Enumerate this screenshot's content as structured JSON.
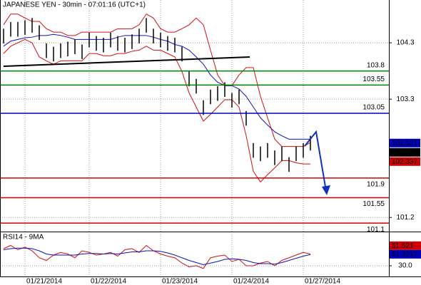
{
  "chart_data": [
    {
      "type": "ohlc",
      "title": "JAPANESE YEN - 30min - 07:01:16 (UTC+1)",
      "categories": [
        null,
        null,
        null,
        "01/21/2014",
        null,
        null,
        null,
        null,
        null,
        null,
        null,
        null,
        "01/22/2014",
        null,
        null,
        null,
        null,
        null,
        null,
        null,
        null,
        null,
        "01/23/2014",
        null,
        null,
        null,
        null,
        null,
        null,
        null,
        null,
        null,
        "01/24/2014",
        null,
        null,
        null,
        null,
        null,
        null,
        null,
        null,
        null,
        "01/27/2014",
        null
      ],
      "high": [
        104.55,
        104.67,
        104.67,
        104.7,
        104.74,
        104.61,
        104.29,
        104.23,
        104.29,
        104.32,
        104.36,
        104.27,
        104.48,
        104.42,
        104.39,
        104.48,
        104.42,
        104.39,
        104.45,
        104.55,
        104.74,
        104.55,
        104.48,
        104.42,
        104.39,
        104.23,
        103.79,
        103.66,
        103.28,
        103.47,
        103.53,
        103.6,
        103.41,
        103.47,
        103.09,
        102.52,
        102.46,
        102.52,
        102.39,
        102.46,
        102.27,
        102.46,
        102.52,
        102.65
      ],
      "low": [
        104.29,
        104.41,
        104.41,
        104.44,
        104.48,
        104.35,
        104.03,
        103.97,
        104.03,
        104.06,
        104.1,
        104.01,
        104.22,
        104.16,
        104.13,
        104.22,
        104.16,
        104.13,
        104.19,
        104.29,
        104.48,
        104.29,
        104.22,
        104.16,
        104.13,
        103.97,
        103.53,
        103.4,
        103.02,
        103.21,
        103.27,
        103.34,
        103.15,
        103.21,
        102.83,
        102.26,
        102.2,
        102.26,
        102.13,
        102.2,
        102.01,
        102.2,
        102.26,
        102.39
      ],
      "bar_color": "#000000",
      "series": [
        {
          "color": "#d01010",
          "values": [
            104.62,
            104.81,
            104.81,
            104.74,
            104.68,
            104.68,
            104.55,
            104.49,
            104.49,
            104.43,
            104.43,
            104.49,
            104.49,
            104.49,
            104.49,
            104.49,
            104.55,
            104.55,
            104.55,
            104.62,
            104.81,
            104.74,
            104.55,
            104.49,
            104.49,
            104.55,
            104.62,
            104.74,
            104.62,
            104.17,
            103.73,
            103.54,
            103.54,
            103.73,
            103.86,
            103.86,
            103.35,
            102.97,
            102.59,
            102.46,
            102.46,
            102.46,
            102.46,
            102.53
          ]
        },
        {
          "color": "#d01010",
          "values": [
            104.11,
            104.24,
            104.3,
            104.36,
            104.3,
            104.05,
            103.98,
            103.92,
            103.98,
            103.98,
            103.98,
            103.98,
            104.11,
            104.11,
            104.07,
            104.07,
            104.11,
            104.11,
            104.15,
            104.17,
            104.24,
            104.17,
            104.17,
            104.11,
            104.05,
            103.79,
            103.41,
            103.16,
            102.91,
            103.03,
            103.16,
            103.29,
            103.29,
            103.16,
            102.65,
            102.02,
            101.83,
            101.96,
            102.08,
            102.21,
            102.21,
            102.17,
            102.15,
            102.15
          ]
        },
        {
          "color": "#1010c0",
          "values": [
            104.24,
            104.33,
            104.36,
            104.39,
            104.4,
            104.43,
            104.43,
            104.45,
            104.43,
            104.4,
            104.36,
            104.36,
            104.36,
            104.36,
            104.36,
            104.36,
            104.4,
            104.43,
            104.43,
            104.43,
            104.43,
            104.4,
            104.36,
            104.33,
            104.27,
            104.24,
            104.17,
            104.05,
            103.92,
            103.73,
            103.6,
            103.54,
            103.54,
            103.48,
            103.35,
            103.16,
            102.97,
            102.84,
            102.72,
            102.65,
            102.59,
            102.59,
            102.59,
            102.59
          ]
        }
      ],
      "levels": [
        {
          "value": 103.8,
          "color": "#008000"
        },
        {
          "value": 103.55,
          "color": "#008000"
        },
        {
          "value": 103.05,
          "color": "#0000c0"
        },
        {
          "value": 101.9,
          "color": "#d00000"
        },
        {
          "value": 101.55,
          "color": "#d00000"
        },
        {
          "value": 101.1,
          "color": "#d00000"
        }
      ],
      "price_labels": [
        {
          "value": 102.521,
          "color": "#0000c0"
        },
        {
          "value": 102.443,
          "color": "#000000"
        },
        {
          "value": 102.337,
          "color": "#d00000"
        }
      ],
      "ylim": [
        100.95,
        105.06
      ],
      "yticks": [
        104.3,
        103.3,
        101.2
      ],
      "grid": true
    },
    {
      "type": "line",
      "title": "RSI14 - 9MA",
      "series": [
        {
          "color": "#d01010",
          "values": [
            62,
            68,
            60,
            65,
            58,
            45,
            40,
            50,
            55,
            52,
            45,
            58,
            55,
            50,
            52,
            55,
            48,
            60,
            62,
            55,
            68,
            58,
            52,
            48,
            45,
            35,
            28,
            30,
            25,
            45,
            48,
            50,
            38,
            42,
            30,
            30,
            35,
            38,
            30,
            40,
            45,
            50,
            55,
            52
          ]
        },
        {
          "color": "#1010c0",
          "values": [
            60,
            62,
            63,
            63,
            62,
            58,
            52,
            50,
            50,
            50,
            50,
            52,
            53,
            53,
            52,
            53,
            52,
            54,
            56,
            56,
            58,
            58,
            57,
            54,
            50,
            45,
            40,
            36,
            32,
            35,
            38,
            42,
            43,
            42,
            40,
            36,
            34,
            34,
            33,
            36,
            40,
            44,
            48,
            51
          ]
        }
      ],
      "last_values": [
        {
          "value": 51.521,
          "color": "#d00000"
        },
        {
          "value": 51.3217,
          "color": "#0000c0"
        }
      ],
      "ylim": [
        10,
        90
      ],
      "yticks": [
        {
          "value": 30,
          "label": "30.0"
        }
      ],
      "grid": true
    }
  ]
}
